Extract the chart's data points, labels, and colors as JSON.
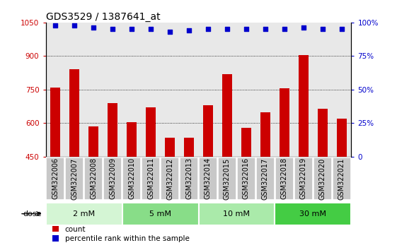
{
  "title": "GDS3529 / 1387641_at",
  "categories": [
    "GSM322006",
    "GSM322007",
    "GSM322008",
    "GSM322009",
    "GSM322010",
    "GSM322011",
    "GSM322012",
    "GSM322013",
    "GSM322014",
    "GSM322015",
    "GSM322016",
    "GSM322017",
    "GSM322018",
    "GSM322019",
    "GSM322020",
    "GSM322021"
  ],
  "bar_values": [
    760,
    840,
    585,
    690,
    605,
    670,
    535,
    535,
    680,
    820,
    580,
    650,
    755,
    905,
    665,
    620
  ],
  "percentile_values": [
    98,
    98,
    96,
    95,
    95,
    95,
    93,
    94,
    95,
    95,
    95,
    95,
    95,
    96,
    95,
    95
  ],
  "bar_color": "#cc0000",
  "dot_color": "#0000cc",
  "ylim_left": [
    450,
    1050
  ],
  "ylim_right": [
    0,
    100
  ],
  "yticks_left": [
    450,
    600,
    750,
    900,
    1050
  ],
  "yticks_right": [
    0,
    25,
    50,
    75,
    100
  ],
  "grid_values": [
    600,
    750,
    900
  ],
  "dose_groups": [
    {
      "label": "2 mM",
      "start": 0,
      "end": 4,
      "color": "#d4f5d4"
    },
    {
      "label": "5 mM",
      "start": 4,
      "end": 8,
      "color": "#88dd88"
    },
    {
      "label": "10 mM",
      "start": 8,
      "end": 12,
      "color": "#aaeaaa"
    },
    {
      "label": "30 mM",
      "start": 12,
      "end": 16,
      "color": "#44cc44"
    }
  ],
  "dose_label": "dose",
  "legend_count_label": "count",
  "legend_pct_label": "percentile rank within the sample",
  "plot_bg_color": "#e8e8e8",
  "tick_bg_color": "#c8c8c8",
  "title_fontsize": 10,
  "axis_fontsize": 7.5,
  "label_fontsize": 7,
  "dose_fontsize": 8,
  "legend_fontsize": 7.5
}
